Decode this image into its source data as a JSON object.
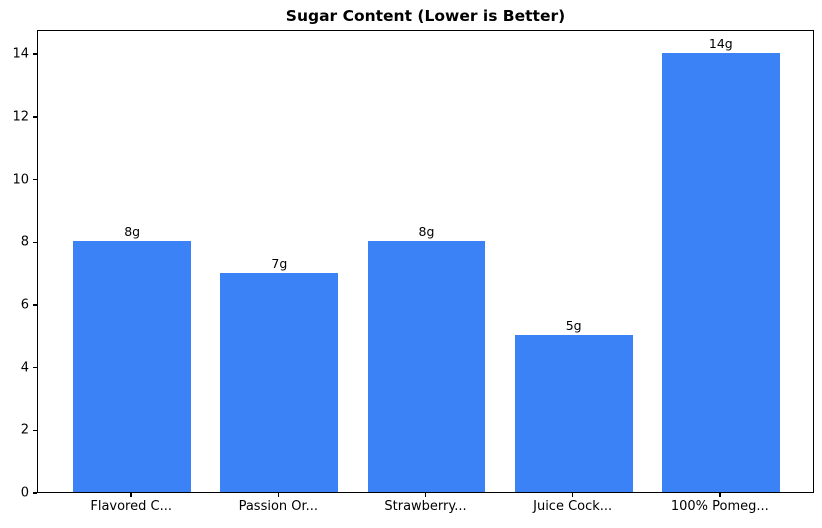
{
  "chart_data": {
    "type": "bar",
    "title": "Sugar Content (Lower is Better)",
    "categories": [
      "Flavored C...",
      "Passion Or...",
      "Strawberry...",
      "Juice Cock...",
      "100% Pomeg..."
    ],
    "values": [
      8,
      7,
      8,
      5,
      14
    ],
    "bar_labels": [
      "8g",
      "7g",
      "8g",
      "5g",
      "14g"
    ],
    "yticks": [
      0,
      2,
      4,
      6,
      8,
      10,
      12,
      14
    ],
    "ylim": [
      0,
      14.77
    ],
    "xlabel": "",
    "ylabel": "",
    "grid": false,
    "legend": null,
    "bar_color": "#3b82f6",
    "axis_color": "#000000",
    "background_color": "#ffffff"
  }
}
